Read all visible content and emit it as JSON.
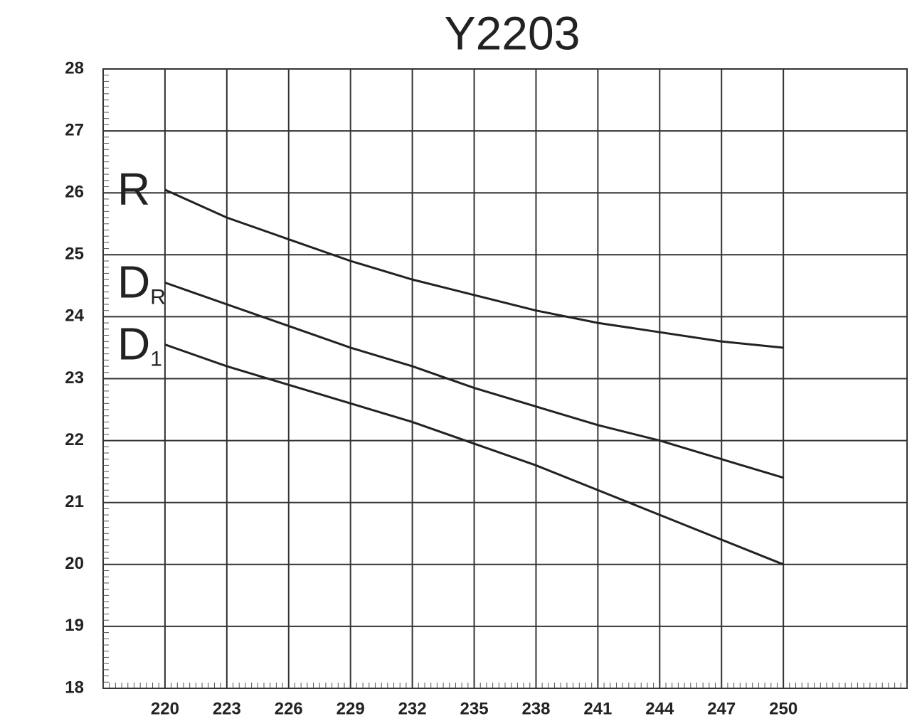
{
  "chart_data": {
    "type": "line",
    "title": "Y2203",
    "x": [
      220,
      223,
      226,
      229,
      232,
      235,
      238,
      241,
      244,
      247,
      250
    ],
    "series": [
      {
        "name": "R",
        "color": "#222222",
        "values": [
          26.05,
          25.6,
          25.25,
          24.9,
          24.6,
          24.35,
          24.1,
          23.9,
          23.75,
          23.6,
          23.5
        ]
      },
      {
        "name": "D",
        "subscript": "R",
        "color": "#222222",
        "values": [
          24.55,
          24.2,
          23.85,
          23.5,
          23.2,
          22.85,
          22.55,
          22.25,
          22.0,
          21.7,
          21.4
        ]
      },
      {
        "name": "D",
        "subscript": "1",
        "color": "#222222",
        "values": [
          23.55,
          23.2,
          22.9,
          22.6,
          22.3,
          21.95,
          21.6,
          21.2,
          20.8,
          20.4,
          20.0
        ]
      }
    ],
    "xlim": [
      217,
      256
    ],
    "xticks": [
      220,
      223,
      226,
      229,
      232,
      235,
      238,
      241,
      244,
      247,
      250
    ],
    "ylim": [
      18,
      28
    ],
    "yticks": [
      18,
      19,
      20,
      21,
      22,
      23,
      24,
      25,
      26,
      27,
      28
    ],
    "grid": true
  }
}
